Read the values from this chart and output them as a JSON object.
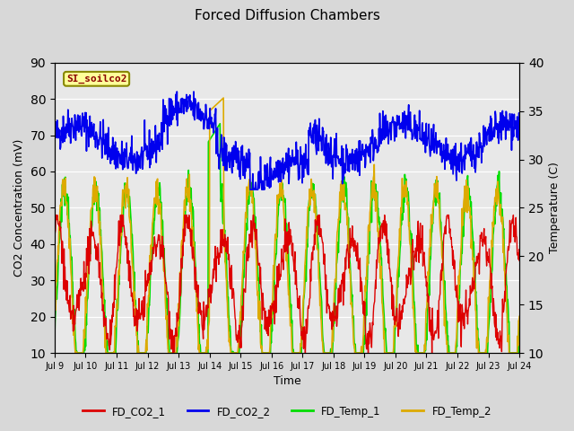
{
  "title": "Forced Diffusion Chambers",
  "xlabel": "Time",
  "ylabel_left": "CO2 Concentration (mV)",
  "ylabel_right": "Temperature (C)",
  "ylim_left": [
    10,
    90
  ],
  "ylim_right": [
    10,
    40
  ],
  "yticks_left": [
    10,
    20,
    30,
    40,
    50,
    60,
    70,
    80,
    90
  ],
  "yticks_right": [
    10,
    15,
    20,
    25,
    30,
    35,
    40
  ],
  "annotation_text": "SI_soilco2",
  "bg_color": "#d8d8d8",
  "plot_bg_color": "#e8e8e8",
  "line_colors": {
    "FD_CO2_1": "#dd0000",
    "FD_CO2_2": "#0000ee",
    "FD_Temp_1": "#00dd00",
    "FD_Temp_2": "#ddaa00"
  },
  "legend_labels": [
    "FD_CO2_1",
    "FD_CO2_2",
    "FD_Temp_1",
    "FD_Temp_2"
  ],
  "x_tick_labels": [
    "Jul 9",
    "Jul 10",
    "Jul 11",
    "Jul 12",
    "Jul 13",
    "Jul 14",
    "Jul 15",
    "Jul 16",
    "Jul 17",
    "Jul 18",
    "Jul 19",
    "Jul 20",
    "Jul 21",
    "Jul 22",
    "Jul 23",
    "Jul 24"
  ],
  "x_tick_positions": [
    0,
    1,
    2,
    3,
    4,
    5,
    6,
    7,
    8,
    9,
    10,
    11,
    12,
    13,
    14,
    15
  ],
  "n_points": 1080,
  "days": 15
}
